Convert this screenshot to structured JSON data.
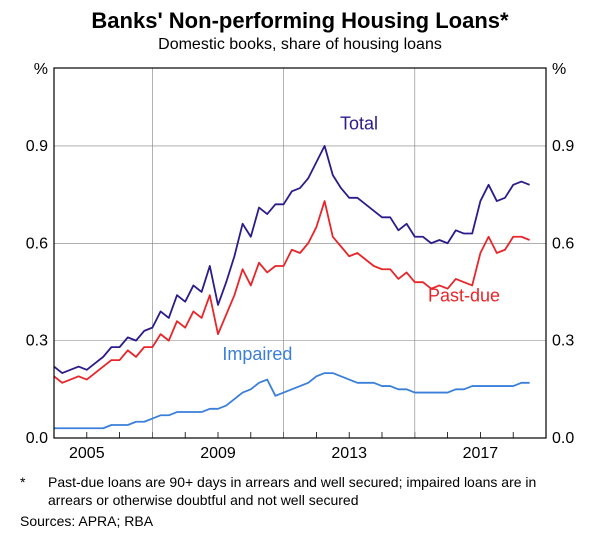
{
  "title": "Banks' Non-performing Housing Loans*",
  "subtitle": "Domestic books, share of housing loans",
  "y_unit_left": "%",
  "y_unit_right": "%",
  "footnote_star": "*",
  "footnote": "Past-due loans are 90+ days in arrears and well secured; impaired loans are in arrears or otherwise doubtful and not well secured",
  "sources": "Sources: APRA; RBA",
  "chart": {
    "type": "line",
    "background_color": "#ffffff",
    "plot_border_color": "#000000",
    "grid_color": "#808080",
    "grid_width": 0.6,
    "x_start": 2003,
    "x_end": 2018,
    "x_ticks": [
      2005,
      2009,
      2013,
      2017
    ],
    "x_tick_labels": [
      "2005",
      "2009",
      "2013",
      "2017"
    ],
    "y_min": 0.0,
    "y_max": 1.14,
    "y_ticks": [
      0.0,
      0.3,
      0.6,
      0.9
    ],
    "y_tick_labels": [
      "0.0",
      "0.3",
      "0.6",
      "0.9"
    ],
    "axis_fontsize": 16,
    "line_width": 1.8,
    "series": [
      {
        "name": "Total",
        "color": "#2e1a8a",
        "label_pos": {
          "x": 2012.3,
          "y": 0.95
        },
        "data": [
          [
            2003.0,
            0.22
          ],
          [
            2003.25,
            0.2
          ],
          [
            2003.5,
            0.21
          ],
          [
            2003.75,
            0.22
          ],
          [
            2004.0,
            0.21
          ],
          [
            2004.25,
            0.23
          ],
          [
            2004.5,
            0.25
          ],
          [
            2004.75,
            0.28
          ],
          [
            2005.0,
            0.28
          ],
          [
            2005.25,
            0.31
          ],
          [
            2005.5,
            0.3
          ],
          [
            2005.75,
            0.33
          ],
          [
            2006.0,
            0.34
          ],
          [
            2006.25,
            0.39
          ],
          [
            2006.5,
            0.37
          ],
          [
            2006.75,
            0.44
          ],
          [
            2007.0,
            0.42
          ],
          [
            2007.25,
            0.47
          ],
          [
            2007.5,
            0.45
          ],
          [
            2007.75,
            0.53
          ],
          [
            2008.0,
            0.41
          ],
          [
            2008.25,
            0.48
          ],
          [
            2008.5,
            0.56
          ],
          [
            2008.75,
            0.66
          ],
          [
            2009.0,
            0.62
          ],
          [
            2009.25,
            0.71
          ],
          [
            2009.5,
            0.69
          ],
          [
            2009.75,
            0.72
          ],
          [
            2010.0,
            0.72
          ],
          [
            2010.25,
            0.76
          ],
          [
            2010.5,
            0.77
          ],
          [
            2010.75,
            0.8
          ],
          [
            2011.0,
            0.85
          ],
          [
            2011.25,
            0.9
          ],
          [
            2011.5,
            0.81
          ],
          [
            2011.75,
            0.77
          ],
          [
            2012.0,
            0.74
          ],
          [
            2012.25,
            0.74
          ],
          [
            2012.5,
            0.72
          ],
          [
            2012.75,
            0.7
          ],
          [
            2013.0,
            0.68
          ],
          [
            2013.25,
            0.68
          ],
          [
            2013.5,
            0.64
          ],
          [
            2013.75,
            0.66
          ],
          [
            2014.0,
            0.62
          ],
          [
            2014.25,
            0.62
          ],
          [
            2014.5,
            0.6
          ],
          [
            2014.75,
            0.61
          ],
          [
            2015.0,
            0.6
          ],
          [
            2015.25,
            0.64
          ],
          [
            2015.5,
            0.63
          ],
          [
            2015.75,
            0.63
          ],
          [
            2016.0,
            0.73
          ],
          [
            2016.25,
            0.78
          ],
          [
            2016.5,
            0.73
          ],
          [
            2016.75,
            0.74
          ],
          [
            2017.0,
            0.78
          ],
          [
            2017.25,
            0.79
          ],
          [
            2017.5,
            0.78
          ]
        ]
      },
      {
        "name": "Past-due",
        "color": "#e8262a",
        "label_pos": {
          "x": 2015.5,
          "y": 0.42
        },
        "data": [
          [
            2003.0,
            0.19
          ],
          [
            2003.25,
            0.17
          ],
          [
            2003.5,
            0.18
          ],
          [
            2003.75,
            0.19
          ],
          [
            2004.0,
            0.18
          ],
          [
            2004.25,
            0.2
          ],
          [
            2004.5,
            0.22
          ],
          [
            2004.75,
            0.24
          ],
          [
            2005.0,
            0.24
          ],
          [
            2005.25,
            0.27
          ],
          [
            2005.5,
            0.25
          ],
          [
            2005.75,
            0.28
          ],
          [
            2006.0,
            0.28
          ],
          [
            2006.25,
            0.32
          ],
          [
            2006.5,
            0.3
          ],
          [
            2006.75,
            0.36
          ],
          [
            2007.0,
            0.34
          ],
          [
            2007.25,
            0.39
          ],
          [
            2007.5,
            0.37
          ],
          [
            2007.75,
            0.44
          ],
          [
            2008.0,
            0.32
          ],
          [
            2008.25,
            0.38
          ],
          [
            2008.5,
            0.44
          ],
          [
            2008.75,
            0.52
          ],
          [
            2009.0,
            0.47
          ],
          [
            2009.25,
            0.54
          ],
          [
            2009.5,
            0.51
          ],
          [
            2009.75,
            0.53
          ],
          [
            2010.0,
            0.53
          ],
          [
            2010.25,
            0.58
          ],
          [
            2010.5,
            0.57
          ],
          [
            2010.75,
            0.6
          ],
          [
            2011.0,
            0.65
          ],
          [
            2011.25,
            0.73
          ],
          [
            2011.5,
            0.62
          ],
          [
            2011.75,
            0.59
          ],
          [
            2012.0,
            0.56
          ],
          [
            2012.25,
            0.57
          ],
          [
            2012.5,
            0.55
          ],
          [
            2012.75,
            0.53
          ],
          [
            2013.0,
            0.52
          ],
          [
            2013.25,
            0.52
          ],
          [
            2013.5,
            0.49
          ],
          [
            2013.75,
            0.51
          ],
          [
            2014.0,
            0.48
          ],
          [
            2014.25,
            0.48
          ],
          [
            2014.5,
            0.46
          ],
          [
            2014.75,
            0.47
          ],
          [
            2015.0,
            0.46
          ],
          [
            2015.25,
            0.49
          ],
          [
            2015.5,
            0.48
          ],
          [
            2015.75,
            0.47
          ],
          [
            2016.0,
            0.57
          ],
          [
            2016.25,
            0.62
          ],
          [
            2016.5,
            0.57
          ],
          [
            2016.75,
            0.58
          ],
          [
            2017.0,
            0.62
          ],
          [
            2017.25,
            0.62
          ],
          [
            2017.5,
            0.61
          ]
        ]
      },
      {
        "name": "Impaired",
        "color": "#3a7fd9",
        "label_pos": {
          "x": 2009.2,
          "y": 0.24
        },
        "data": [
          [
            2003.0,
            0.03
          ],
          [
            2003.25,
            0.03
          ],
          [
            2003.5,
            0.03
          ],
          [
            2003.75,
            0.03
          ],
          [
            2004.0,
            0.03
          ],
          [
            2004.25,
            0.03
          ],
          [
            2004.5,
            0.03
          ],
          [
            2004.75,
            0.04
          ],
          [
            2005.0,
            0.04
          ],
          [
            2005.25,
            0.04
          ],
          [
            2005.5,
            0.05
          ],
          [
            2005.75,
            0.05
          ],
          [
            2006.0,
            0.06
          ],
          [
            2006.25,
            0.07
          ],
          [
            2006.5,
            0.07
          ],
          [
            2006.75,
            0.08
          ],
          [
            2007.0,
            0.08
          ],
          [
            2007.25,
            0.08
          ],
          [
            2007.5,
            0.08
          ],
          [
            2007.75,
            0.09
          ],
          [
            2008.0,
            0.09
          ],
          [
            2008.25,
            0.1
          ],
          [
            2008.5,
            0.12
          ],
          [
            2008.75,
            0.14
          ],
          [
            2009.0,
            0.15
          ],
          [
            2009.25,
            0.17
          ],
          [
            2009.5,
            0.18
          ],
          [
            2009.75,
            0.13
          ],
          [
            2010.0,
            0.14
          ],
          [
            2010.25,
            0.15
          ],
          [
            2010.5,
            0.16
          ],
          [
            2010.75,
            0.17
          ],
          [
            2011.0,
            0.19
          ],
          [
            2011.25,
            0.2
          ],
          [
            2011.5,
            0.2
          ],
          [
            2011.75,
            0.19
          ],
          [
            2012.0,
            0.18
          ],
          [
            2012.25,
            0.17
          ],
          [
            2012.5,
            0.17
          ],
          [
            2012.75,
            0.17
          ],
          [
            2013.0,
            0.16
          ],
          [
            2013.25,
            0.16
          ],
          [
            2013.5,
            0.15
          ],
          [
            2013.75,
            0.15
          ],
          [
            2014.0,
            0.14
          ],
          [
            2014.25,
            0.14
          ],
          [
            2014.5,
            0.14
          ],
          [
            2014.75,
            0.14
          ],
          [
            2015.0,
            0.14
          ],
          [
            2015.25,
            0.15
          ],
          [
            2015.5,
            0.15
          ],
          [
            2015.75,
            0.16
          ],
          [
            2016.0,
            0.16
          ],
          [
            2016.25,
            0.16
          ],
          [
            2016.5,
            0.16
          ],
          [
            2016.75,
            0.16
          ],
          [
            2017.0,
            0.16
          ],
          [
            2017.25,
            0.17
          ],
          [
            2017.5,
            0.17
          ]
        ]
      }
    ]
  }
}
